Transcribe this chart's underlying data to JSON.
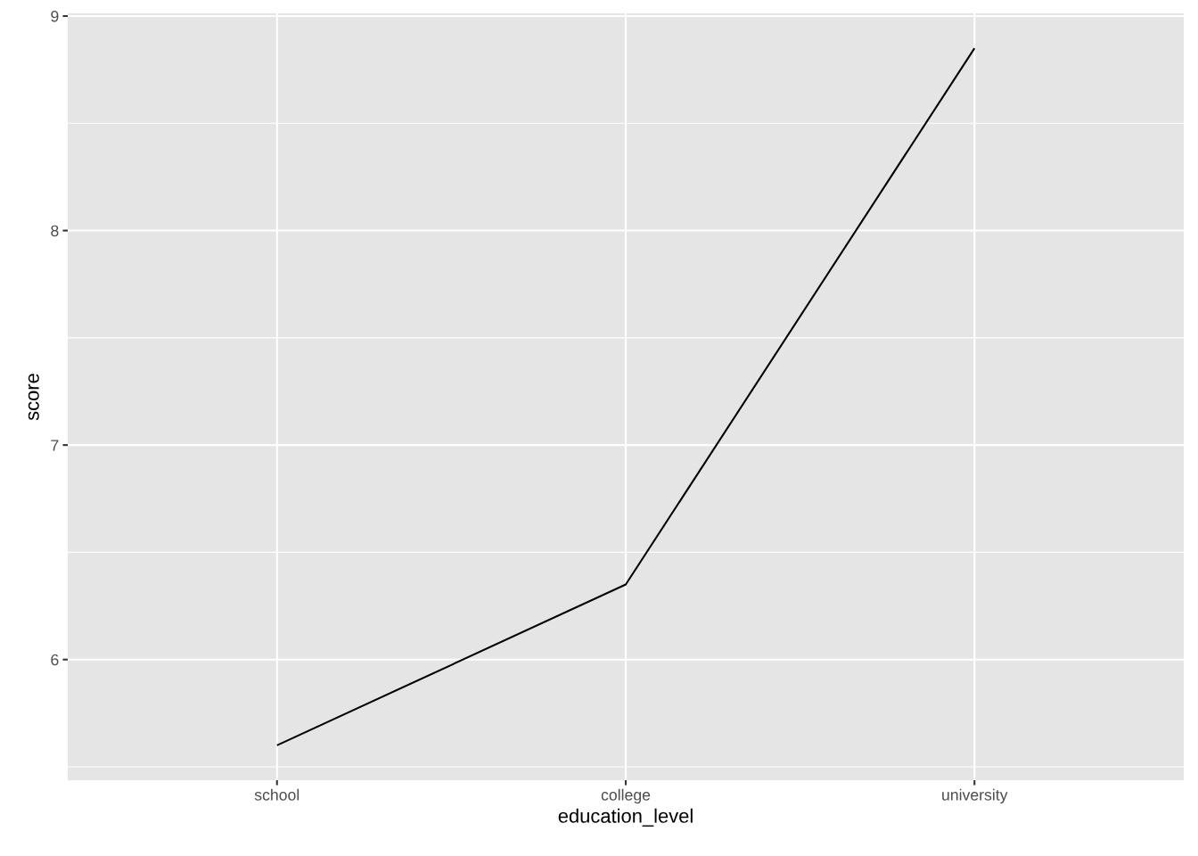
{
  "chart_data": {
    "type": "line",
    "xlabel": "education_level",
    "ylabel": "score",
    "categories": [
      "school",
      "college",
      "university"
    ],
    "series": [
      {
        "color": "#000000",
        "values": [
          5.6,
          6.35,
          8.85
        ]
      }
    ],
    "ylim": [
      5.4375,
      9.0125
    ],
    "yticks": [
      6,
      7,
      8,
      9
    ],
    "grid": true
  }
}
